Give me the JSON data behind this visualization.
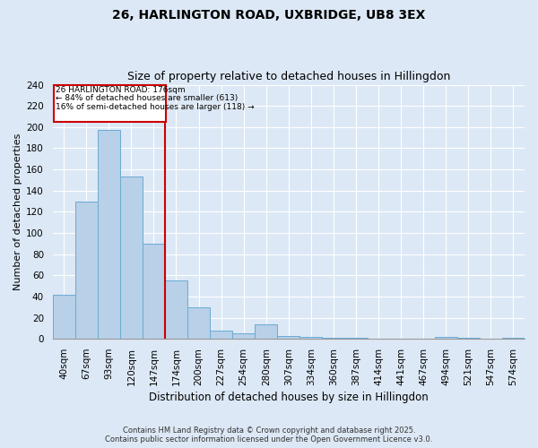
{
  "title": "26, HARLINGTON ROAD, UXBRIDGE, UB8 3EX",
  "subtitle": "Size of property relative to detached houses in Hillingdon",
  "xlabel": "Distribution of detached houses by size in Hillingdon",
  "ylabel": "Number of detached properties",
  "categories": [
    "40sqm",
    "67sqm",
    "93sqm",
    "120sqm",
    "147sqm",
    "174sqm",
    "200sqm",
    "227sqm",
    "254sqm",
    "280sqm",
    "307sqm",
    "334sqm",
    "360sqm",
    "387sqm",
    "414sqm",
    "441sqm",
    "467sqm",
    "494sqm",
    "521sqm",
    "547sqm",
    "574sqm"
  ],
  "values": [
    42,
    130,
    197,
    153,
    90,
    55,
    30,
    8,
    5,
    14,
    3,
    2,
    1,
    1,
    0,
    0,
    0,
    2,
    1,
    0,
    1
  ],
  "bar_color": "#b8d0e8",
  "bar_edge_color": "#6aaad4",
  "vline_x": 4.5,
  "vline_color": "#cc0000",
  "annotation_title": "26 HARLINGTON ROAD: 176sqm",
  "annotation_line1": "← 84% of detached houses are smaller (613)",
  "annotation_line2": "16% of semi-detached houses are larger (118) →",
  "annotation_box_color": "#cc0000",
  "ylim": [
    0,
    240
  ],
  "yticks": [
    0,
    20,
    40,
    60,
    80,
    100,
    120,
    140,
    160,
    180,
    200,
    220,
    240
  ],
  "footer1": "Contains HM Land Registry data © Crown copyright and database right 2025.",
  "footer2": "Contains public sector information licensed under the Open Government Licence v3.0.",
  "bg_color": "#dce8f5",
  "plot_bg_color": "#dce8f5",
  "title_fontsize": 10,
  "subtitle_fontsize": 9,
  "ylabel_fontsize": 8,
  "xlabel_fontsize": 8.5,
  "tick_fontsize": 7.5
}
